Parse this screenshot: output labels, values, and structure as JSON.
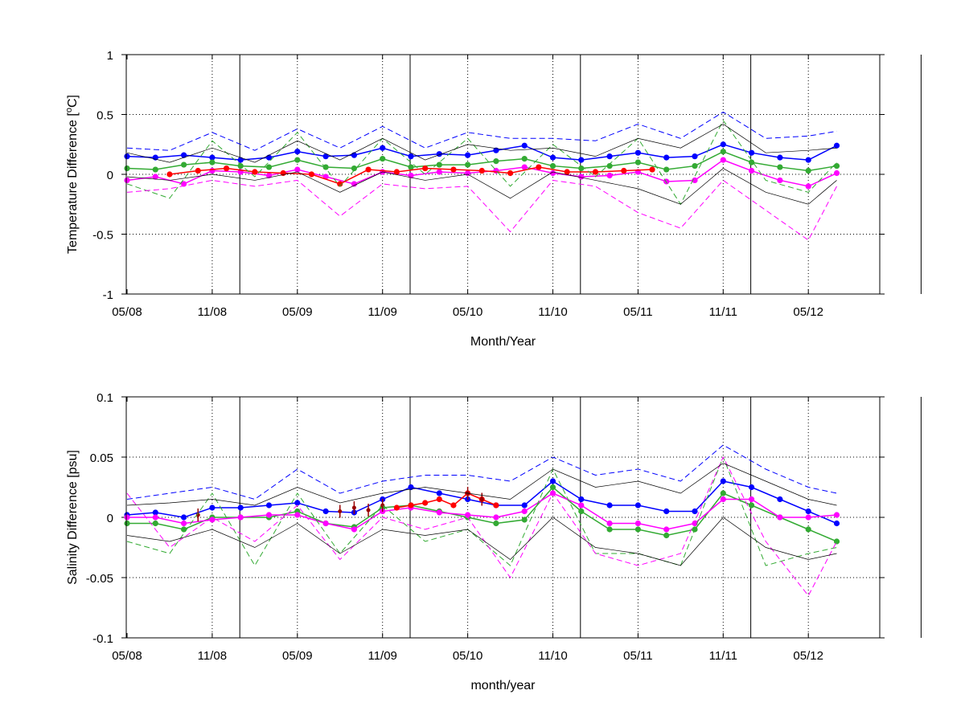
{
  "chart_data": [
    {
      "type": "line",
      "panel": "top",
      "xlabel": "Month/Year",
      "ylabel": "Temperature Difference [",
      "ylabel_sup": "o",
      "ylabel_end": "C]",
      "ylim": [
        -1,
        1
      ],
      "x_tick_labels": [
        "05/08",
        "11/08",
        "05/09",
        "11/09",
        "05/10",
        "11/10",
        "05/11",
        "11/11",
        "05/12"
      ],
      "y_tick_labels": [
        "1",
        "0.5",
        "0",
        "-0.5",
        "-1"
      ],
      "y_tick_values": [
        1,
        0.5,
        0,
        -0.5,
        -1
      ],
      "grid": true,
      "year_boundaries": [
        "2009-01",
        "2010-01",
        "2011-01",
        "2012-01",
        "2013-01"
      ],
      "colors": {
        "blue": "#0000ff",
        "green": "#33aa33",
        "magenta": "#ff00ff",
        "red": "#ff0000",
        "black": "#000000"
      },
      "series": [
        {
          "color": "blue",
          "style": "markers",
          "x": [
            "2008-05",
            "2008-07",
            "2008-09",
            "2008-11",
            "2009-01",
            "2009-03",
            "2009-05",
            "2009-07",
            "2009-09",
            "2009-11",
            "2010-01",
            "2010-03",
            "2010-05",
            "2010-07",
            "2010-09",
            "2010-11",
            "2011-01",
            "2011-03",
            "2011-05",
            "2011-07",
            "2011-09",
            "2011-11",
            "2012-01",
            "2012-03",
            "2012-05",
            "2012-07"
          ],
          "values": [
            0.15,
            0.14,
            0.16,
            0.14,
            0.12,
            0.14,
            0.19,
            0.15,
            0.16,
            0.22,
            0.15,
            0.17,
            0.16,
            0.2,
            0.24,
            0.14,
            0.12,
            0.15,
            0.18,
            0.14,
            0.15,
            0.25,
            0.18,
            0.14,
            0.12,
            0.24
          ]
        },
        {
          "color": "green",
          "style": "markers",
          "x": [
            "2008-05",
            "2008-07",
            "2008-09",
            "2008-11",
            "2009-01",
            "2009-03",
            "2009-05",
            "2009-07",
            "2009-09",
            "2009-11",
            "2010-01",
            "2010-03",
            "2010-05",
            "2010-07",
            "2010-09",
            "2010-11",
            "2011-01",
            "2011-03",
            "2011-05",
            "2011-07",
            "2011-09",
            "2011-11",
            "2012-01",
            "2012-03",
            "2012-05",
            "2012-07"
          ],
          "values": [
            0.05,
            0.04,
            0.08,
            0.1,
            0.07,
            0.06,
            0.12,
            0.06,
            0.05,
            0.13,
            0.06,
            0.08,
            0.08,
            0.11,
            0.13,
            0.07,
            0.05,
            0.07,
            0.1,
            0.04,
            0.07,
            0.19,
            0.1,
            0.06,
            0.03,
            0.07
          ]
        },
        {
          "color": "magenta",
          "style": "markers",
          "x": [
            "2008-05",
            "2008-07",
            "2008-09",
            "2008-11",
            "2009-01",
            "2009-03",
            "2009-05",
            "2009-07",
            "2009-09",
            "2009-11",
            "2010-01",
            "2010-03",
            "2010-05",
            "2010-07",
            "2010-09",
            "2010-11",
            "2011-01",
            "2011-03",
            "2011-05",
            "2011-07",
            "2011-09",
            "2011-11",
            "2012-01",
            "2012-03",
            "2012-05",
            "2012-07"
          ],
          "values": [
            -0.05,
            -0.02,
            -0.08,
            0.03,
            0.02,
            -0.01,
            0.04,
            -0.02,
            -0.08,
            0.02,
            -0.01,
            0.02,
            0.01,
            0.03,
            0.06,
            0.01,
            -0.02,
            -0.01,
            0.02,
            -0.06,
            -0.05,
            0.12,
            0.03,
            -0.05,
            -0.1,
            0.01
          ]
        },
        {
          "color": "red",
          "style": "markers",
          "x": [
            "2008-08",
            "2008-10",
            "2008-12",
            "2009-02",
            "2009-04",
            "2009-06",
            "2009-08",
            "2009-10",
            "2009-12",
            "2010-02",
            "2010-04",
            "2010-06",
            "2010-08",
            "2010-10",
            "2010-12",
            "2011-02",
            "2011-04",
            "2011-06"
          ],
          "values": [
            0.0,
            0.03,
            0.05,
            0.02,
            0.01,
            0.0,
            -0.08,
            0.04,
            0.02,
            0.05,
            0.04,
            0.03,
            0.01,
            0.06,
            0.02,
            0.02,
            0.03,
            0.04
          ]
        },
        {
          "color": "blue",
          "style": "dashed",
          "x": [
            "2008-05",
            "2008-08",
            "2008-11",
            "2009-02",
            "2009-05",
            "2009-08",
            "2009-11",
            "2010-02",
            "2010-05",
            "2010-08",
            "2010-11",
            "2011-02",
            "2011-05",
            "2011-08",
            "2011-11",
            "2012-02",
            "2012-05",
            "2012-07"
          ],
          "values": [
            0.22,
            0.2,
            0.35,
            0.2,
            0.38,
            0.22,
            0.4,
            0.22,
            0.35,
            0.3,
            0.3,
            0.28,
            0.42,
            0.3,
            0.52,
            0.3,
            0.32,
            0.36
          ]
        },
        {
          "color": "green",
          "style": "dashed",
          "x": [
            "2008-05",
            "2008-08",
            "2008-11",
            "2009-02",
            "2009-05",
            "2009-08",
            "2009-11",
            "2010-02",
            "2010-05",
            "2010-08",
            "2010-11",
            "2011-02",
            "2011-05",
            "2011-08",
            "2011-11",
            "2012-02",
            "2012-05",
            "2012-07"
          ],
          "values": [
            -0.08,
            -0.2,
            0.28,
            -0.02,
            0.35,
            -0.1,
            0.3,
            0.0,
            0.3,
            -0.1,
            0.25,
            -0.02,
            0.3,
            -0.25,
            0.45,
            -0.05,
            -0.15,
            0.1
          ]
        },
        {
          "color": "magenta",
          "style": "dashed",
          "x": [
            "2008-05",
            "2008-08",
            "2008-11",
            "2009-02",
            "2009-05",
            "2009-08",
            "2009-11",
            "2010-02",
            "2010-05",
            "2010-08",
            "2010-11",
            "2011-02",
            "2011-05",
            "2011-08",
            "2011-11",
            "2012-02",
            "2012-05",
            "2012-07"
          ],
          "values": [
            -0.15,
            -0.12,
            -0.05,
            -0.1,
            -0.05,
            -0.35,
            -0.08,
            -0.12,
            -0.1,
            -0.48,
            -0.05,
            -0.1,
            -0.32,
            -0.45,
            -0.05,
            -0.3,
            -0.55,
            -0.1
          ]
        },
        {
          "color": "black",
          "style": "thin",
          "x": [
            "2008-05",
            "2008-08",
            "2008-11",
            "2009-02",
            "2009-05",
            "2009-08",
            "2009-11",
            "2010-02",
            "2010-05",
            "2010-08",
            "2010-11",
            "2011-02",
            "2011-05",
            "2011-08",
            "2011-11",
            "2012-02",
            "2012-05",
            "2012-07"
          ],
          "values": [
            0.18,
            0.1,
            0.22,
            0.1,
            0.28,
            0.12,
            0.3,
            0.12,
            0.25,
            0.2,
            0.22,
            0.15,
            0.3,
            0.22,
            0.42,
            0.18,
            0.2,
            0.22
          ]
        },
        {
          "color": "black",
          "style": "thin",
          "x": [
            "2008-05",
            "2008-08",
            "2008-11",
            "2009-02",
            "2009-05",
            "2009-08",
            "2009-11",
            "2010-02",
            "2010-05",
            "2010-08",
            "2010-11",
            "2011-02",
            "2011-05",
            "2011-08",
            "2011-11",
            "2012-02",
            "2012-05",
            "2012-07"
          ],
          "values": [
            -0.02,
            -0.05,
            0.0,
            -0.05,
            0.02,
            -0.15,
            0.02,
            -0.05,
            0.0,
            -0.2,
            0.02,
            -0.05,
            -0.12,
            -0.25,
            0.05,
            -0.15,
            -0.25,
            -0.05
          ]
        }
      ]
    },
    {
      "type": "line",
      "panel": "bottom",
      "xlabel": "month/year",
      "ylabel": "Salinity Difference [psu]",
      "ylim": [
        -0.1,
        0.1
      ],
      "x_tick_labels": [
        "05/08",
        "11/08",
        "05/09",
        "11/09",
        "05/10",
        "11/10",
        "05/11",
        "11/11",
        "05/12"
      ],
      "y_tick_labels": [
        "0.1",
        "0.05",
        "0",
        "-0.05",
        "-0.1"
      ],
      "y_tick_values": [
        0.1,
        0.05,
        0,
        -0.05,
        -0.1
      ],
      "grid": true,
      "year_boundaries": [
        "2009-01",
        "2010-01",
        "2011-01",
        "2012-01",
        "2013-01"
      ],
      "colors": {
        "blue": "#0000ff",
        "green": "#33aa33",
        "magenta": "#ff00ff",
        "red": "#ff0000",
        "darkred": "#990000",
        "black": "#000000"
      },
      "series": [
        {
          "color": "blue",
          "style": "markers",
          "x": [
            "2008-05",
            "2008-07",
            "2008-09",
            "2008-11",
            "2009-01",
            "2009-03",
            "2009-05",
            "2009-07",
            "2009-09",
            "2009-11",
            "2010-01",
            "2010-03",
            "2010-05",
            "2010-07",
            "2010-09",
            "2010-11",
            "2011-01",
            "2011-03",
            "2011-05",
            "2011-07",
            "2011-09",
            "2011-11",
            "2012-01",
            "2012-03",
            "2012-05",
            "2012-07"
          ],
          "values": [
            0.002,
            0.004,
            0.0,
            0.008,
            0.008,
            0.01,
            0.012,
            0.005,
            0.004,
            0.015,
            0.025,
            0.02,
            0.015,
            0.01,
            0.01,
            0.03,
            0.015,
            0.01,
            0.01,
            0.005,
            0.005,
            0.03,
            0.025,
            0.015,
            0.005,
            -0.005
          ]
        },
        {
          "color": "green",
          "style": "markers",
          "x": [
            "2008-05",
            "2008-07",
            "2008-09",
            "2008-11",
            "2009-01",
            "2009-03",
            "2009-05",
            "2009-07",
            "2009-09",
            "2009-11",
            "2010-01",
            "2010-03",
            "2010-05",
            "2010-07",
            "2010-09",
            "2010-11",
            "2011-01",
            "2011-03",
            "2011-05",
            "2011-07",
            "2011-09",
            "2011-11",
            "2012-01",
            "2012-03",
            "2012-05",
            "2012-07"
          ],
          "values": [
            -0.005,
            -0.005,
            -0.01,
            0.0,
            0.0,
            0.0,
            0.005,
            -0.005,
            -0.008,
            0.008,
            0.01,
            0.005,
            0.0,
            -0.005,
            -0.002,
            0.025,
            0.005,
            -0.01,
            -0.01,
            -0.015,
            -0.01,
            0.02,
            0.01,
            0.0,
            -0.01,
            -0.02
          ]
        },
        {
          "color": "magenta",
          "style": "markers",
          "x": [
            "2008-05",
            "2008-07",
            "2008-09",
            "2008-11",
            "2009-01",
            "2009-03",
            "2009-05",
            "2009-07",
            "2009-09",
            "2009-11",
            "2010-01",
            "2010-03",
            "2010-05",
            "2010-07",
            "2010-09",
            "2010-11",
            "2011-01",
            "2011-03",
            "2011-05",
            "2011-07",
            "2011-09",
            "2011-11",
            "2012-01",
            "2012-03",
            "2012-05",
            "2012-07"
          ],
          "values": [
            0.0,
            0.0,
            -0.005,
            -0.002,
            0.0,
            0.002,
            0.002,
            -0.005,
            -0.01,
            0.005,
            0.008,
            0.004,
            0.002,
            0.0,
            0.005,
            0.02,
            0.01,
            -0.005,
            -0.005,
            -0.01,
            -0.005,
            0.015,
            0.015,
            0.0,
            0.0,
            0.002
          ]
        },
        {
          "color": "red",
          "style": "markers",
          "x": [
            "2009-12",
            "2010-01",
            "2010-02",
            "2010-03",
            "2010-04",
            "2010-05",
            "2010-06",
            "2010-07"
          ],
          "values": [
            0.008,
            0.01,
            0.012,
            0.015,
            0.01,
            0.02,
            0.015,
            0.01
          ]
        },
        {
          "color": "darkred",
          "style": "errorbars",
          "x": [
            "2008-10",
            "2009-08",
            "2009-09",
            "2009-10",
            "2009-11",
            "2010-05",
            "2010-06"
          ],
          "values": [
            0.002,
            0.005,
            0.008,
            0.006,
            0.01,
            0.02,
            0.015
          ]
        },
        {
          "color": "blue",
          "style": "dashed",
          "x": [
            "2008-05",
            "2008-08",
            "2008-11",
            "2009-02",
            "2009-05",
            "2009-08",
            "2009-11",
            "2010-02",
            "2010-05",
            "2010-08",
            "2010-11",
            "2011-02",
            "2011-05",
            "2011-08",
            "2011-11",
            "2012-02",
            "2012-05",
            "2012-07"
          ],
          "values": [
            0.015,
            0.02,
            0.025,
            0.015,
            0.04,
            0.02,
            0.03,
            0.035,
            0.035,
            0.03,
            0.05,
            0.035,
            0.04,
            0.03,
            0.06,
            0.04,
            0.025,
            0.02
          ]
        },
        {
          "color": "green",
          "style": "dashed",
          "x": [
            "2008-05",
            "2008-08",
            "2008-11",
            "2009-02",
            "2009-05",
            "2009-08",
            "2009-11",
            "2010-02",
            "2010-05",
            "2010-08",
            "2010-11",
            "2011-02",
            "2011-05",
            "2011-08",
            "2011-11",
            "2012-02",
            "2012-05",
            "2012-07"
          ],
          "values": [
            -0.02,
            -0.03,
            0.02,
            -0.04,
            0.02,
            -0.03,
            0.01,
            -0.02,
            -0.01,
            -0.04,
            0.04,
            -0.03,
            -0.03,
            -0.04,
            0.05,
            -0.04,
            -0.03,
            -0.025
          ]
        },
        {
          "color": "magenta",
          "style": "dashed",
          "x": [
            "2008-05",
            "2008-08",
            "2008-11",
            "2009-02",
            "2009-05",
            "2009-08",
            "2009-11",
            "2010-02",
            "2010-05",
            "2010-08",
            "2010-11",
            "2011-02",
            "2011-05",
            "2011-08",
            "2011-11",
            "2012-02",
            "2012-05",
            "2012-07"
          ],
          "values": [
            0.02,
            -0.025,
            0.0,
            -0.02,
            0.01,
            -0.035,
            0.0,
            -0.01,
            0.0,
            -0.05,
            0.02,
            -0.03,
            -0.04,
            -0.03,
            0.05,
            -0.02,
            -0.065,
            -0.02
          ]
        },
        {
          "color": "black",
          "style": "thin",
          "x": [
            "2008-05",
            "2008-08",
            "2008-11",
            "2009-02",
            "2009-05",
            "2009-08",
            "2009-11",
            "2010-02",
            "2010-05",
            "2010-08",
            "2010-11",
            "2011-02",
            "2011-05",
            "2011-08",
            "2011-11",
            "2012-02",
            "2012-05",
            "2012-07"
          ],
          "values": [
            0.01,
            0.012,
            0.015,
            0.01,
            0.025,
            0.012,
            0.02,
            0.025,
            0.02,
            0.015,
            0.04,
            0.025,
            0.03,
            0.02,
            0.045,
            0.03,
            0.015,
            0.01
          ]
        },
        {
          "color": "black",
          "style": "thin",
          "x": [
            "2008-05",
            "2008-08",
            "2008-11",
            "2009-02",
            "2009-05",
            "2009-08",
            "2009-11",
            "2010-02",
            "2010-05",
            "2010-08",
            "2010-11",
            "2011-02",
            "2011-05",
            "2011-08",
            "2011-11",
            "2012-02",
            "2012-05",
            "2012-07"
          ],
          "values": [
            -0.015,
            -0.02,
            -0.01,
            -0.025,
            -0.005,
            -0.03,
            -0.01,
            -0.015,
            -0.01,
            -0.035,
            0.0,
            -0.025,
            -0.03,
            -0.04,
            0.0,
            -0.025,
            -0.035,
            -0.03
          ]
        }
      ]
    }
  ]
}
